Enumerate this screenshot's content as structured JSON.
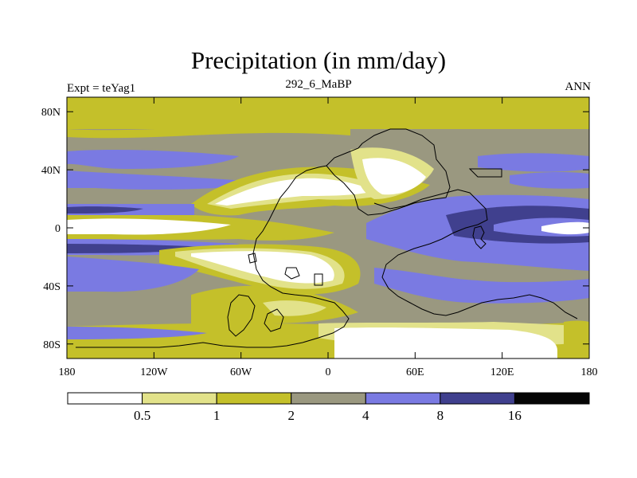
{
  "title": "Precipitation (in mm/day)",
  "experiment_label": "Expt = teYag1",
  "run_label": "292_6_MaBP",
  "season_label": "ANN",
  "lat_ticks": [
    {
      "value": 80,
      "label": "80N"
    },
    {
      "value": 40,
      "label": "40N"
    },
    {
      "value": 0,
      "label": "0"
    },
    {
      "value": -40,
      "label": "40S"
    },
    {
      "value": -80,
      "label": "80S"
    }
  ],
  "lon_ticks": [
    {
      "value": -180,
      "label": "180"
    },
    {
      "value": -120,
      "label": "120W"
    },
    {
      "value": -60,
      "label": "60W"
    },
    {
      "value": 0,
      "label": "0"
    },
    {
      "value": 60,
      "label": "60E"
    },
    {
      "value": 120,
      "label": "120E"
    },
    {
      "value": 180,
      "label": "180"
    }
  ],
  "colorbar": {
    "colors": [
      "#ffffff",
      "#e2e28a",
      "#c4c02a",
      "#9a9880",
      "#7a7ae2",
      "#40408e",
      "#050505"
    ],
    "labels": [
      "0.5",
      "1",
      "2",
      "4",
      "8",
      "16"
    ]
  },
  "chart_data": {
    "type": "heatmap",
    "title": "Precipitation (in mm/day)",
    "subtitle_left": "Expt = teYag1",
    "subtitle_center": "292_6_MaBP",
    "subtitle_right": "ANN",
    "xlim": [
      -180,
      180
    ],
    "ylim": [
      -90,
      90
    ],
    "units": "mm/day",
    "levels": [
      0.5,
      1,
      2,
      4,
      8,
      16
    ]
  }
}
